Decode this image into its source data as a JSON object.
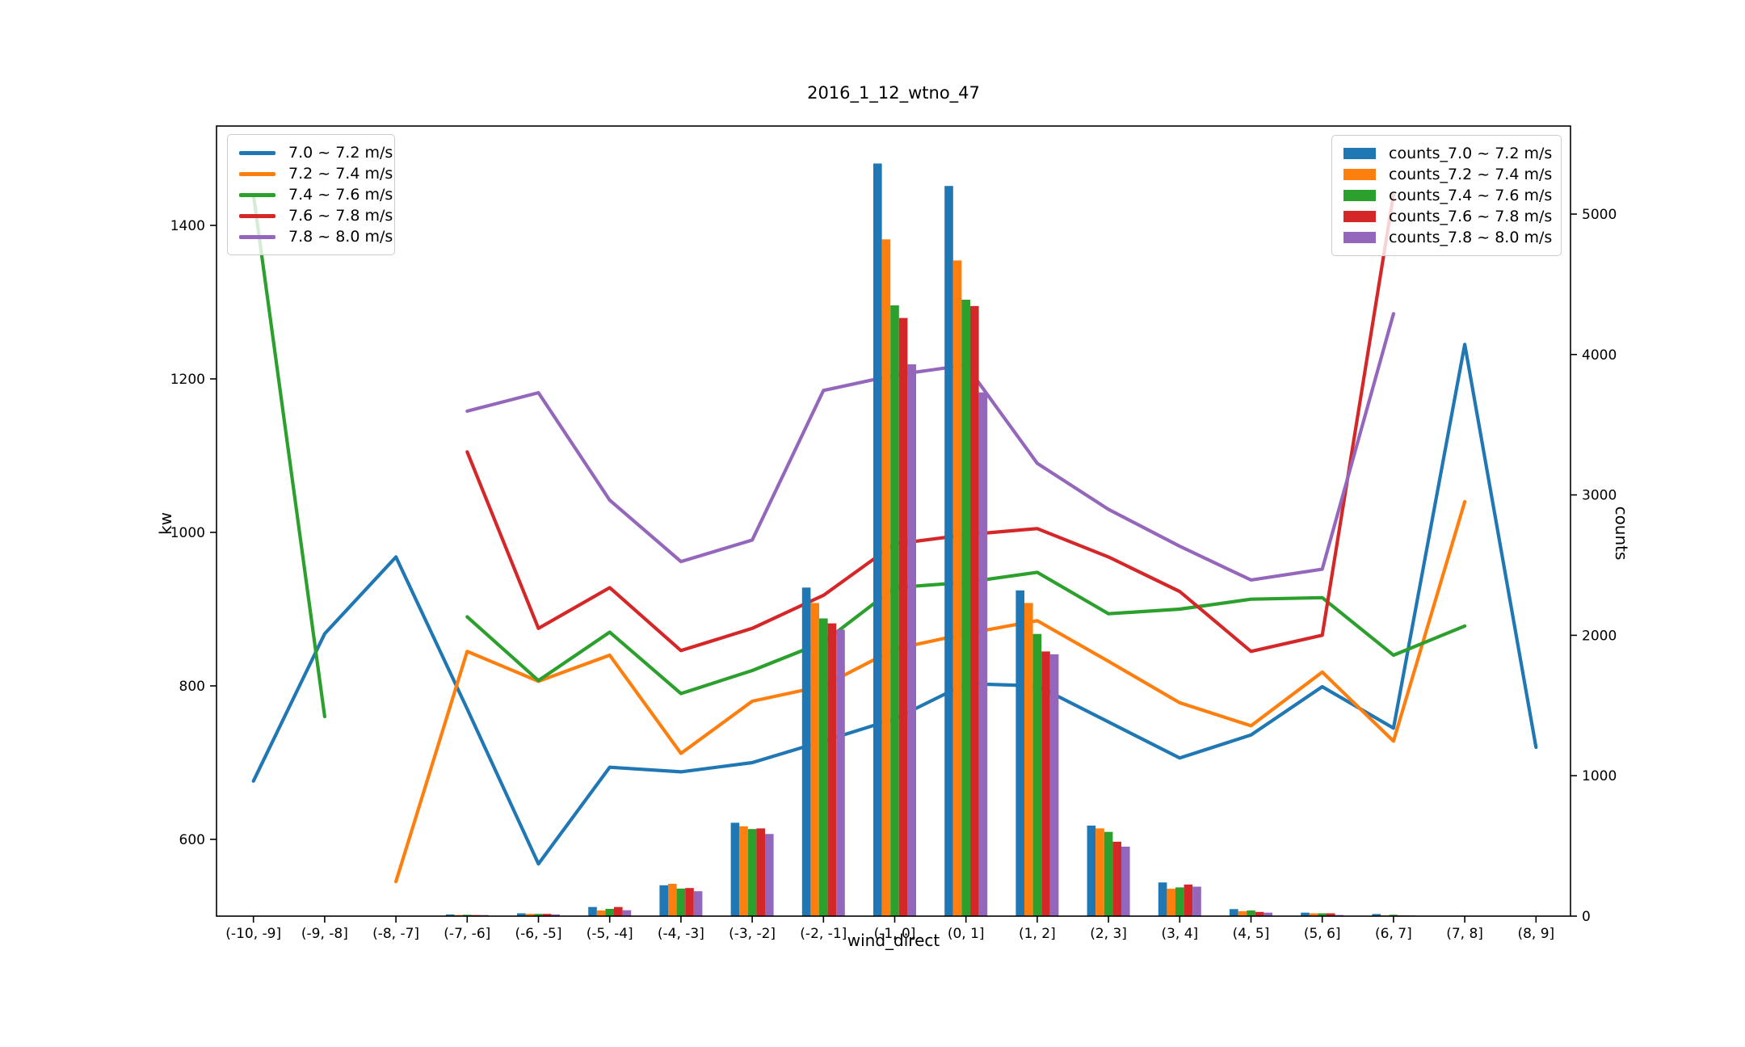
{
  "title": "2016_1_12_wtno_47",
  "chart_data": {
    "type": "line+bar",
    "title": "2016_1_12_wtno_47",
    "xlabel": "wind_direct",
    "categories": [
      "(-10, -9]",
      "(-9, -8]",
      "(-8, -7]",
      "(-7, -6]",
      "(-6, -5]",
      "(-5, -4]",
      "(-4, -3]",
      "(-3, -2]",
      "(-2, -1]",
      "(-1, 0]",
      "(0, 1]",
      "(1, 2]",
      "(2, 3]",
      "(3, 4]",
      "(4, 5]",
      "(5, 6]",
      "(6, 7]",
      "(7, 8]",
      "(8, 9]"
    ],
    "left_axis": {
      "label": "kw",
      "ticks": [
        600,
        800,
        1000,
        1200,
        1400
      ],
      "range": [
        500,
        1529
      ],
      "grid": false
    },
    "right_axis": {
      "label": "counts",
      "ticks": [
        0,
        1000,
        2000,
        3000,
        4000,
        5000
      ],
      "range": [
        0,
        5627
      ],
      "grid": false
    },
    "legend_left_position": "upper left",
    "legend_right_position": "upper right",
    "line_series": [
      {
        "name": "7.0 ~ 7.2 m/s",
        "color": "#1f77b4",
        "values": [
          676,
          868,
          968,
          770,
          568,
          694,
          688,
          700,
          728,
          757,
          803,
          800,
          753,
          706,
          736,
          799,
          745,
          1245,
          720
        ]
      },
      {
        "name": "7.2 ~ 7.4 m/s",
        "color": "#ff7f0e",
        "values": [
          null,
          null,
          545,
          845,
          806,
          840,
          712,
          780,
          800,
          848,
          868,
          885,
          832,
          778,
          748,
          818,
          728,
          1040,
          null
        ]
      },
      {
        "name": "7.4 ~ 7.6 m/s",
        "color": "#2ca02c",
        "values": [
          1440,
          760,
          null,
          890,
          807,
          870,
          790,
          820,
          857,
          928,
          935,
          948,
          894,
          900,
          913,
          915,
          840,
          878,
          null
        ]
      },
      {
        "name": "7.6 ~ 7.8 m/s",
        "color": "#d62728",
        "values": [
          null,
          null,
          null,
          1105,
          875,
          928,
          846,
          875,
          918,
          985,
          997,
          1005,
          968,
          923,
          845,
          866,
          1440,
          null,
          null
        ]
      },
      {
        "name": "7.8 ~ 8.0 m/s",
        "color": "#9467bd",
        "values": [
          null,
          null,
          null,
          1158,
          1182,
          1042,
          962,
          990,
          1185,
          1205,
          1218,
          1090,
          1030,
          982,
          938,
          952,
          1285,
          null,
          null
        ]
      }
    ],
    "bar_series": [
      {
        "name": "counts_7.0 ~ 7.2 m/s",
        "color": "#1f77b4",
        "values": [
          0,
          0,
          0,
          12,
          20,
          65,
          220,
          665,
          2340,
          5360,
          5200,
          2320,
          645,
          240,
          50,
          25,
          15,
          0,
          0
        ]
      },
      {
        "name": "counts_7.2 ~ 7.4 m/s",
        "color": "#ff7f0e",
        "values": [
          0,
          0,
          0,
          8,
          16,
          40,
          230,
          640,
          2230,
          4820,
          4670,
          2230,
          625,
          195,
          35,
          20,
          5,
          0,
          0
        ]
      },
      {
        "name": "counts_7.4 ~ 7.6 m/s",
        "color": "#2ca02c",
        "values": [
          0,
          0,
          0,
          10,
          16,
          52,
          196,
          620,
          2120,
          4350,
          4390,
          2010,
          600,
          205,
          40,
          20,
          10,
          0,
          0
        ]
      },
      {
        "name": "counts_7.6 ~ 7.8 m/s",
        "color": "#d62728",
        "values": [
          0,
          0,
          0,
          8,
          16,
          65,
          200,
          625,
          2085,
          4260,
          4345,
          1885,
          530,
          225,
          30,
          20,
          5,
          0,
          0
        ]
      },
      {
        "name": "counts_7.8 ~ 8.0 m/s",
        "color": "#9467bd",
        "values": [
          0,
          0,
          0,
          8,
          12,
          42,
          177,
          585,
          2040,
          3930,
          3730,
          1865,
          495,
          210,
          25,
          8,
          5,
          0,
          0
        ]
      }
    ]
  }
}
